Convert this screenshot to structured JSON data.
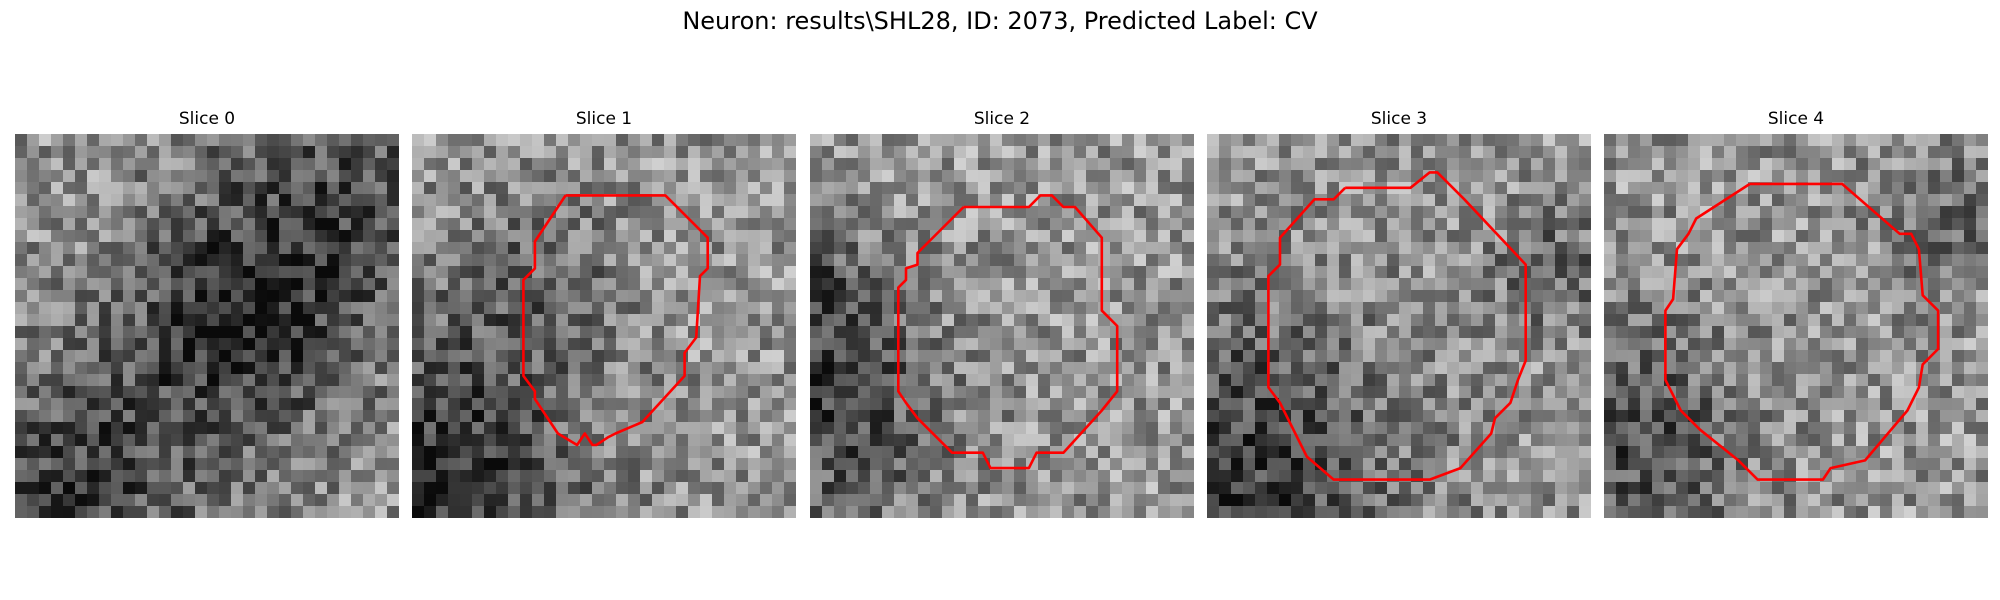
{
  "figure": {
    "title": "Neuron: results\\SHL28, ID: 2073, Predicted Label: CV"
  },
  "panels": [
    {
      "title": "Slice 0",
      "has_outline": false,
      "seed": 11,
      "dark": [
        [
          0.9,
          0.12,
          0.3,
          0.4
        ],
        [
          0.6,
          0.45,
          0.18,
          0.35
        ],
        [
          0.15,
          0.92,
          0.2,
          0.45
        ],
        [
          0.5,
          0.62,
          0.25,
          0.3
        ]
      ]
    },
    {
      "title": "Slice 1",
      "has_outline": true,
      "seed": 23,
      "dark": [
        [
          0.08,
          0.92,
          0.25,
          0.65
        ],
        [
          0.3,
          0.4,
          0.18,
          0.3
        ]
      ],
      "outline": [
        [
          0.4,
          0.16
        ],
        [
          0.66,
          0.16
        ],
        [
          0.77,
          0.27
        ],
        [
          0.77,
          0.35
        ],
        [
          0.75,
          0.37
        ],
        [
          0.74,
          0.53
        ],
        [
          0.71,
          0.57
        ],
        [
          0.71,
          0.63
        ],
        [
          0.6,
          0.75
        ],
        [
          0.53,
          0.78
        ],
        [
          0.51,
          0.79
        ],
        [
          0.48,
          0.81
        ],
        [
          0.47,
          0.81
        ],
        [
          0.45,
          0.78
        ],
        [
          0.43,
          0.81
        ],
        [
          0.38,
          0.78
        ],
        [
          0.32,
          0.69
        ],
        [
          0.32,
          0.67
        ],
        [
          0.29,
          0.63
        ],
        [
          0.29,
          0.38
        ],
        [
          0.32,
          0.35
        ],
        [
          0.32,
          0.28
        ],
        [
          0.4,
          0.16
        ]
      ],
      "outline_color": "#ff0000"
    },
    {
      "title": "Slice 2",
      "has_outline": true,
      "seed": 37,
      "dark": [
        [
          0.06,
          0.72,
          0.2,
          0.5
        ],
        [
          0.02,
          0.4,
          0.12,
          0.35
        ]
      ],
      "outline": [
        [
          0.4,
          0.19
        ],
        [
          0.57,
          0.19
        ],
        [
          0.6,
          0.16
        ],
        [
          0.63,
          0.16
        ],
        [
          0.66,
          0.19
        ],
        [
          0.69,
          0.19
        ],
        [
          0.76,
          0.27
        ],
        [
          0.76,
          0.46
        ],
        [
          0.8,
          0.5
        ],
        [
          0.8,
          0.67
        ],
        [
          0.76,
          0.72
        ],
        [
          0.66,
          0.83
        ],
        [
          0.59,
          0.83
        ],
        [
          0.57,
          0.87
        ],
        [
          0.47,
          0.87
        ],
        [
          0.45,
          0.83
        ],
        [
          0.37,
          0.83
        ],
        [
          0.28,
          0.74
        ],
        [
          0.25,
          0.7
        ],
        [
          0.23,
          0.67
        ],
        [
          0.23,
          0.4
        ],
        [
          0.25,
          0.38
        ],
        [
          0.25,
          0.35
        ],
        [
          0.28,
          0.34
        ],
        [
          0.28,
          0.31
        ],
        [
          0.4,
          0.19
        ]
      ],
      "outline_color": "#ff0000"
    },
    {
      "title": "Slice 3",
      "has_outline": true,
      "seed": 53,
      "dark": [
        [
          0.06,
          0.88,
          0.3,
          0.55
        ],
        [
          0.9,
          0.35,
          0.12,
          0.3
        ]
      ],
      "outline": [
        [
          0.36,
          0.14
        ],
        [
          0.53,
          0.14
        ],
        [
          0.58,
          0.1
        ],
        [
          0.6,
          0.1
        ],
        [
          0.67,
          0.17
        ],
        [
          0.83,
          0.34
        ],
        [
          0.83,
          0.59
        ],
        [
          0.81,
          0.64
        ],
        [
          0.79,
          0.7
        ],
        [
          0.75,
          0.74
        ],
        [
          0.74,
          0.78
        ],
        [
          0.66,
          0.87
        ],
        [
          0.58,
          0.9
        ],
        [
          0.33,
          0.9
        ],
        [
          0.26,
          0.84
        ],
        [
          0.23,
          0.78
        ],
        [
          0.19,
          0.7
        ],
        [
          0.16,
          0.66
        ],
        [
          0.16,
          0.37
        ],
        [
          0.19,
          0.34
        ],
        [
          0.19,
          0.27
        ],
        [
          0.28,
          0.17
        ],
        [
          0.33,
          0.17
        ],
        [
          0.36,
          0.14
        ]
      ],
      "outline_color": "#ff0000"
    },
    {
      "title": "Slice 4",
      "has_outline": true,
      "seed": 71,
      "dark": [
        [
          0.05,
          0.8,
          0.22,
          0.45
        ],
        [
          0.92,
          0.22,
          0.12,
          0.3
        ]
      ],
      "outline": [
        [
          0.38,
          0.13
        ],
        [
          0.62,
          0.13
        ],
        [
          0.77,
          0.26
        ],
        [
          0.8,
          0.26
        ],
        [
          0.82,
          0.3
        ],
        [
          0.83,
          0.42
        ],
        [
          0.87,
          0.46
        ],
        [
          0.87,
          0.56
        ],
        [
          0.83,
          0.6
        ],
        [
          0.82,
          0.66
        ],
        [
          0.79,
          0.72
        ],
        [
          0.68,
          0.85
        ],
        [
          0.59,
          0.87
        ],
        [
          0.57,
          0.9
        ],
        [
          0.4,
          0.9
        ],
        [
          0.35,
          0.85
        ],
        [
          0.25,
          0.77
        ],
        [
          0.2,
          0.72
        ],
        [
          0.16,
          0.64
        ],
        [
          0.16,
          0.46
        ],
        [
          0.18,
          0.43
        ],
        [
          0.19,
          0.3
        ],
        [
          0.22,
          0.26
        ],
        [
          0.24,
          0.22
        ],
        [
          0.38,
          0.13
        ]
      ],
      "outline_color": "#ff0000"
    }
  ]
}
